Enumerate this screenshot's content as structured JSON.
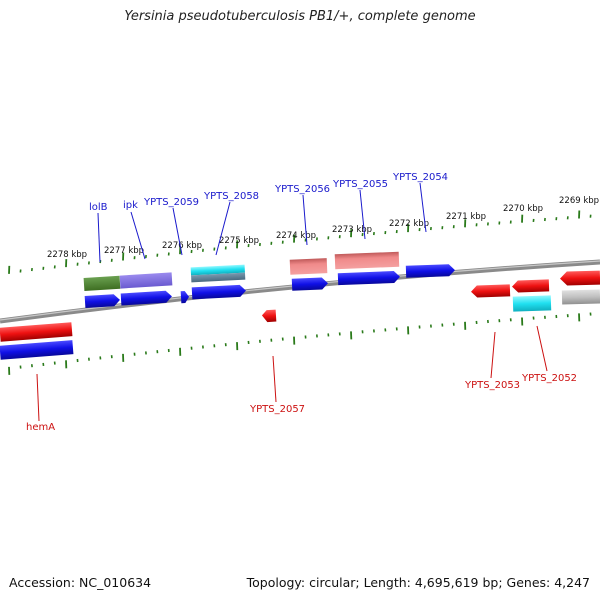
{
  "title": "Yersinia pseudotuberculosis PB1/+, complete genome",
  "footer": {
    "accession": "Accession: NC_010634",
    "stats": "Topology: circular; Length: 4,695,619 bp; Genes: 4,247"
  },
  "scale_labels": [
    "2278 kbp",
    "2277 kbp",
    "2276 kbp",
    "2275 kbp",
    "2274 kbp",
    "2273 kbp",
    "2272 kbp",
    "2271 kbp",
    "2270 kbp",
    "2269 kbp"
  ],
  "gene_labels_top": [
    "lolB",
    "ipk",
    "YPTS_2059",
    "YPTS_2058",
    "YPTS_2056",
    "YPTS_2055",
    "YPTS_2054"
  ],
  "gene_labels_bottom": [
    "hemA",
    "YPTS_2057",
    "YPTS_2053",
    "YPTS_2052"
  ],
  "colors": {
    "top_label": "#1a1acc",
    "bottom_label": "#cc1111",
    "tick": "#2a7a1a",
    "backbone": "#808080",
    "cds": "#1010e0",
    "red_gene": "#ee1111"
  }
}
